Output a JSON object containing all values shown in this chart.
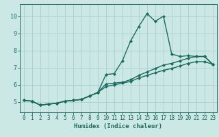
{
  "xlabel": "Humidex (Indice chaleur)",
  "bg_color": "#cce8e4",
  "line_color": "#1a6b5e",
  "grid_color": "#aacfcb",
  "xlim": [
    -0.5,
    23.5
  ],
  "ylim": [
    4.4,
    10.7
  ],
  "xticks": [
    0,
    1,
    2,
    3,
    4,
    5,
    6,
    7,
    8,
    9,
    10,
    11,
    12,
    13,
    14,
    15,
    16,
    17,
    18,
    19,
    20,
    21,
    22,
    23
  ],
  "yticks": [
    5,
    6,
    7,
    8,
    9,
    10
  ],
  "line1_x": [
    0,
    1,
    2,
    3,
    4,
    5,
    6,
    7,
    8,
    9,
    10,
    11,
    12,
    13,
    14,
    15,
    16,
    17,
    18,
    19,
    20,
    21,
    22,
    23
  ],
  "line1_y": [
    5.1,
    5.05,
    4.82,
    4.88,
    4.93,
    5.05,
    5.1,
    5.15,
    5.35,
    5.55,
    6.6,
    6.65,
    7.4,
    8.55,
    9.4,
    10.15,
    9.7,
    10.0,
    7.8,
    7.65,
    7.7,
    7.65,
    7.65,
    7.2
  ],
  "line2_x": [
    0,
    1,
    2,
    3,
    4,
    5,
    6,
    7,
    8,
    9,
    10,
    11,
    12,
    13,
    14,
    15,
    16,
    17,
    18,
    19,
    20,
    21,
    22,
    23
  ],
  "line2_y": [
    5.1,
    5.05,
    4.82,
    4.88,
    4.93,
    5.05,
    5.1,
    5.15,
    5.35,
    5.55,
    6.05,
    6.1,
    6.15,
    6.3,
    6.55,
    6.75,
    6.95,
    7.15,
    7.25,
    7.4,
    7.55,
    7.65,
    7.65,
    7.2
  ],
  "line3_x": [
    0,
    1,
    2,
    3,
    4,
    5,
    6,
    7,
    8,
    9,
    10,
    11,
    12,
    13,
    14,
    15,
    16,
    17,
    18,
    19,
    20,
    21,
    22,
    23
  ],
  "line3_y": [
    5.1,
    5.05,
    4.82,
    4.88,
    4.93,
    5.05,
    5.1,
    5.15,
    5.35,
    5.55,
    5.9,
    6.0,
    6.1,
    6.2,
    6.4,
    6.55,
    6.7,
    6.85,
    6.95,
    7.1,
    7.25,
    7.35,
    7.35,
    7.2
  ],
  "marker": "D",
  "markersize": 2.2,
  "linewidth": 1.0,
  "tick_fontsize": 5.5,
  "xlabel_fontsize": 6.5
}
